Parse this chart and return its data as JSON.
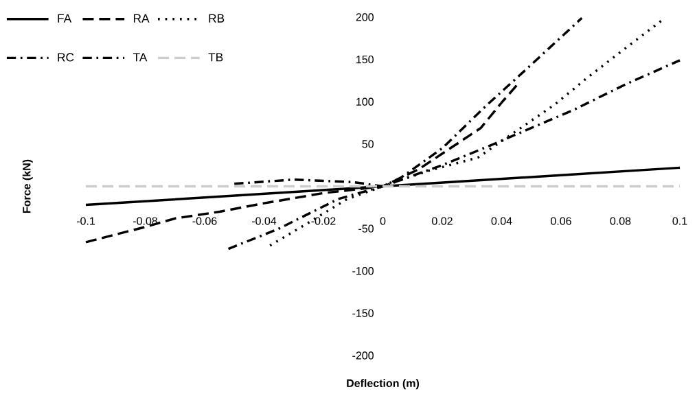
{
  "chart_data": {
    "type": "line",
    "xlabel": "Deflection (m)",
    "ylabel": "Force (kN)",
    "xlim": [
      -0.1,
      0.1
    ],
    "xticks": [
      -0.1,
      -0.08,
      -0.06,
      -0.04,
      -0.02,
      0,
      0.02,
      0.04,
      0.06,
      0.08,
      0.1
    ],
    "ylim": [
      -200,
      200
    ],
    "yticks": [
      -200,
      -150,
      -100,
      -50,
      50,
      100,
      150,
      200
    ],
    "legend": "top left",
    "grid": false,
    "series": [
      {
        "name": "FA",
        "color": "#000000",
        "line_style": "solid",
        "x": [
          -0.1,
          0,
          0.1
        ],
        "values": [
          -22,
          0,
          22
        ]
      },
      {
        "name": "RA",
        "color": "#000000",
        "line_style": "dashed",
        "x": [
          -0.1,
          -0.08,
          -0.07,
          -0.055,
          -0.04,
          -0.02,
          0,
          0.012,
          0.033,
          0.04,
          0.046
        ],
        "values": [
          -66,
          -48,
          -38,
          -30,
          -20,
          -8,
          0,
          20,
          69,
          99,
          123
        ]
      },
      {
        "name": "RB",
        "color": "#000000",
        "line_style": "dotted",
        "x": [
          -0.038,
          -0.026,
          -0.012,
          0,
          0.015,
          0.032,
          0.058,
          0.068,
          0.079,
          0.095
        ],
        "values": [
          -70,
          -45,
          -15,
          0,
          18,
          34,
          97,
          126,
          156,
          199
        ]
      },
      {
        "name": "RC",
        "color": "#000000",
        "line_style": "dashdot",
        "x": [
          -0.05,
          -0.03,
          -0.01,
          0,
          0.02,
          0.036,
          0.064,
          0.082,
          0.1
        ],
        "values": [
          3,
          8,
          5,
          0,
          25,
          48,
          90,
          121,
          149
        ]
      },
      {
        "name": "TA",
        "color": "#000000",
        "line_style": "dashdot",
        "x": [
          -0.052,
          -0.035,
          -0.015,
          0,
          0.006,
          0.02,
          0.035,
          0.0485,
          0.063,
          0.067
        ],
        "values": [
          -74,
          -50,
          -15,
          0,
          10,
          45,
          96,
          139,
          186,
          199
        ]
      },
      {
        "name": "TB",
        "color": "#cccccc",
        "line_style": "dashed",
        "x": [
          -0.1,
          0.1
        ],
        "values": [
          0,
          0
        ]
      }
    ]
  }
}
